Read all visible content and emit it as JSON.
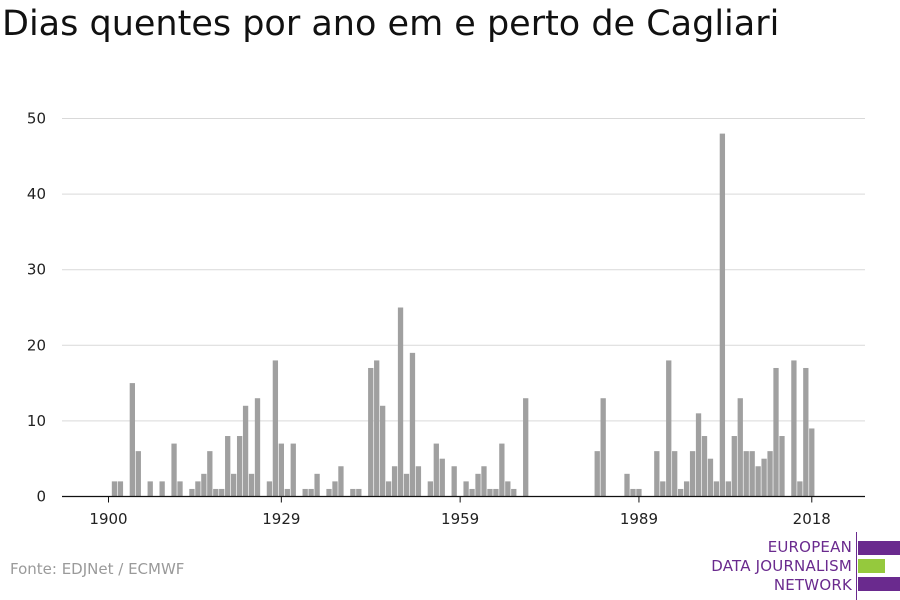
{
  "title": "Dias quentes por ano em e perto de Cagliari",
  "source": "Fonte: EDJNet / ECMWF",
  "logo": {
    "lines": [
      "EUROPEAN",
      "DATA JOURNALISM",
      "NETWORK"
    ],
    "colors": {
      "text": "#6a2a8e",
      "purple": "#6a2a8e",
      "green": "#95c93d"
    }
  },
  "colors": {
    "bar": "#a0a0a0",
    "grid": "#d9d9d9",
    "axis": "#111111"
  },
  "chart_data": {
    "type": "bar",
    "title": "Dias quentes por ano em e perto de Cagliari",
    "xlabel": "",
    "ylabel": "",
    "ylim": [
      0,
      50
    ],
    "yticks": [
      0,
      10,
      20,
      30,
      40,
      50
    ],
    "xticks": [
      1900,
      1929,
      1959,
      1989,
      2018
    ],
    "grid": true,
    "x": [
      1900,
      1901,
      1902,
      1903,
      1904,
      1905,
      1906,
      1907,
      1908,
      1909,
      1910,
      1911,
      1912,
      1913,
      1914,
      1915,
      1916,
      1917,
      1918,
      1919,
      1920,
      1921,
      1922,
      1923,
      1924,
      1925,
      1926,
      1927,
      1928,
      1929,
      1930,
      1931,
      1932,
      1933,
      1934,
      1935,
      1936,
      1937,
      1938,
      1939,
      1940,
      1941,
      1942,
      1943,
      1944,
      1945,
      1946,
      1947,
      1948,
      1949,
      1950,
      1951,
      1952,
      1953,
      1954,
      1955,
      1956,
      1957,
      1958,
      1959,
      1960,
      1961,
      1962,
      1963,
      1964,
      1965,
      1966,
      1967,
      1968,
      1969,
      1970,
      1971,
      1972,
      1973,
      1974,
      1975,
      1976,
      1977,
      1978,
      1979,
      1980,
      1981,
      1982,
      1983,
      1984,
      1985,
      1986,
      1987,
      1988,
      1989,
      1990,
      1991,
      1992,
      1993,
      1994,
      1995,
      1996,
      1997,
      1998,
      1999,
      2000,
      2001,
      2002,
      2003,
      2004,
      2005,
      2006,
      2007,
      2008,
      2009,
      2010,
      2011,
      2012,
      2013,
      2014,
      2015,
      2016,
      2017,
      2018
    ],
    "values": [
      0,
      2,
      2,
      0,
      15,
      6,
      0,
      2,
      0,
      2,
      0,
      7,
      2,
      0,
      1,
      2,
      3,
      6,
      1,
      1,
      8,
      3,
      8,
      12,
      3,
      13,
      0,
      2,
      18,
      7,
      1,
      7,
      0,
      1,
      1,
      3,
      0,
      1,
      2,
      4,
      0,
      1,
      1,
      0,
      17,
      18,
      12,
      2,
      4,
      25,
      3,
      19,
      4,
      0,
      2,
      7,
      5,
      0,
      4,
      0,
      2,
      1,
      3,
      4,
      1,
      1,
      7,
      2,
      1,
      0,
      13,
      0,
      0,
      0,
      0,
      0,
      0,
      0,
      0,
      0,
      0,
      0,
      6,
      13,
      0,
      0,
      0,
      3,
      1,
      1,
      0,
      0,
      6,
      2,
      18,
      6,
      1,
      2,
      6,
      11,
      8,
      5,
      2,
      48,
      2,
      8,
      13,
      6,
      6,
      4,
      5,
      6,
      17,
      8,
      0,
      18,
      2,
      17,
      9
    ]
  }
}
